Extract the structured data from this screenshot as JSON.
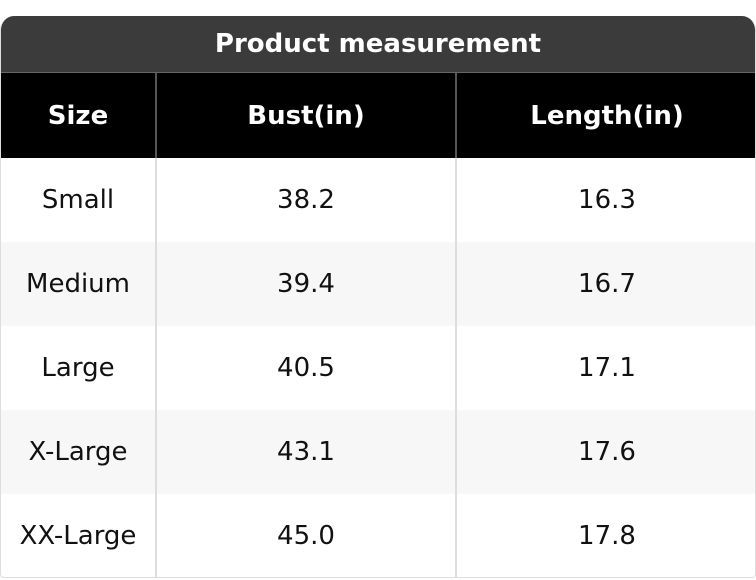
{
  "title": "Product measurement",
  "table": {
    "header": [
      "Size",
      "Bust(in)",
      "Length(in)"
    ],
    "rows": [
      [
        "Small",
        "38.2",
        "16.3"
      ],
      [
        "Medium",
        "39.4",
        "16.7"
      ],
      [
        "Large",
        "40.5",
        "17.1"
      ],
      [
        "X-Large",
        "43.1",
        "17.6"
      ],
      [
        "XX-Large",
        "45.0",
        "17.8"
      ]
    ]
  }
}
